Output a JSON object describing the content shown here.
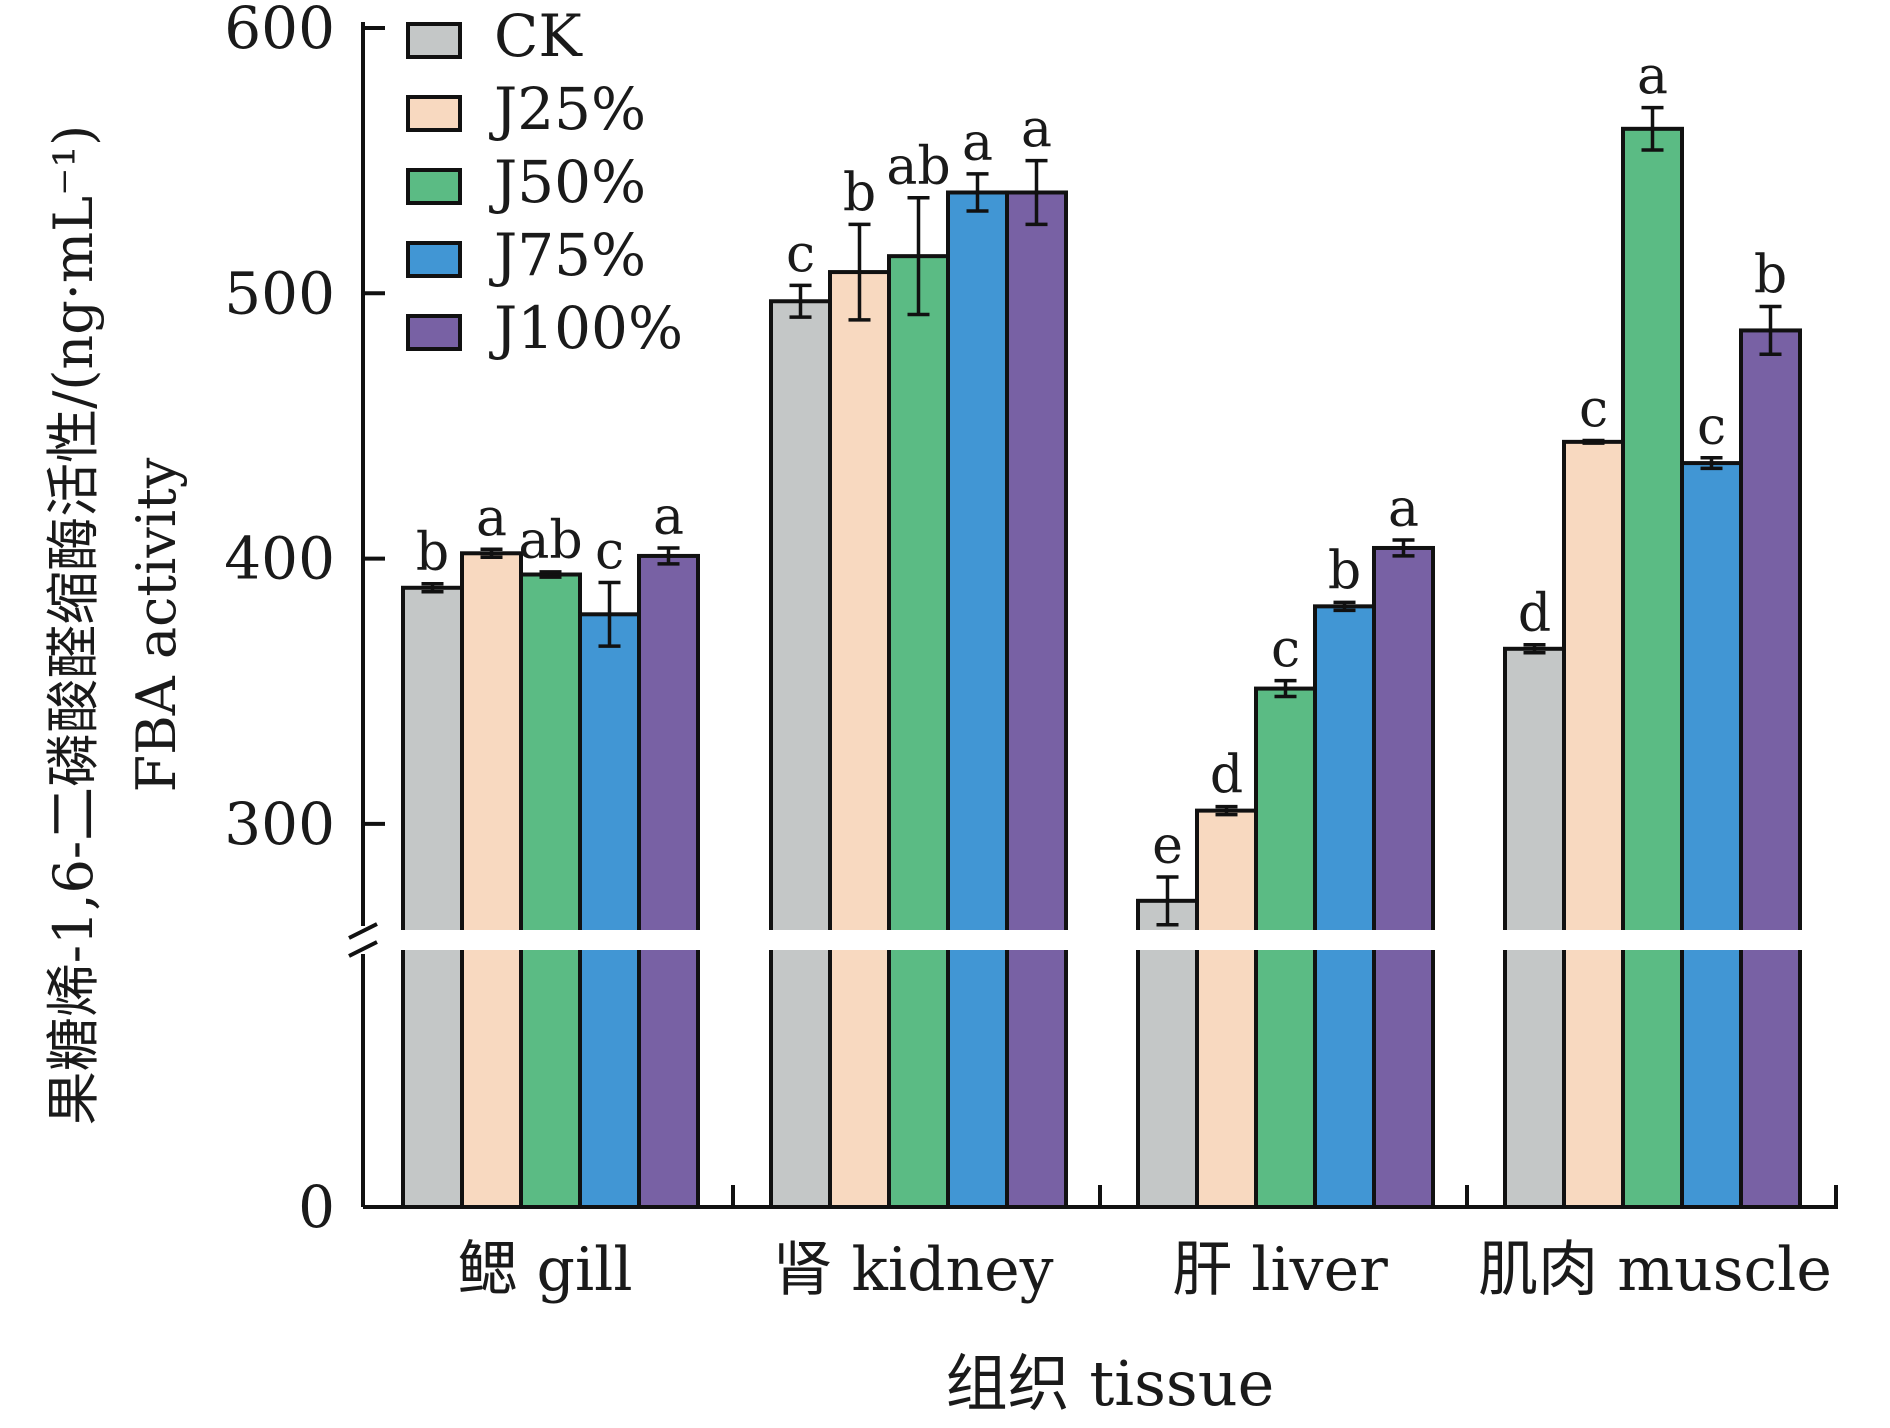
{
  "chart_data": {
    "type": "bar",
    "title": "",
    "xlabel": "组织 tissue",
    "ylabel_line1": "果糖烯-1,6-二磷酸醛缩酶活性/(ng·mL⁻¹)",
    "ylabel_line2": "FBA activity",
    "categories": [
      "鳃 gill",
      "肾 kidney",
      "肝 liver",
      "肌肉 muscle"
    ],
    "yticks": [
      "0",
      "300",
      "400",
      "500",
      "600"
    ],
    "ylim_upper": [
      260,
      600
    ],
    "ylim_lower": [
      0,
      260
    ],
    "axis_break": true,
    "legend_position": "top-left",
    "series": [
      {
        "name": "CK",
        "color": "#c4c7c7",
        "values": [
          389,
          497,
          271,
          366
        ],
        "errors": [
          1.5,
          6,
          9,
          1.5
        ],
        "letters": [
          "b",
          "c",
          "e",
          "d"
        ]
      },
      {
        "name": "J25%",
        "color": "#f8d9c0",
        "values": [
          402,
          508,
          305,
          444
        ],
        "errors": [
          1.5,
          18,
          1.5,
          0.5
        ],
        "letters": [
          "a",
          "b",
          "d",
          "c"
        ]
      },
      {
        "name": "J50%",
        "color": "#5bbb84",
        "values": [
          394,
          514,
          351,
          562
        ],
        "errors": [
          1,
          22,
          3,
          8
        ],
        "letters": [
          "ab",
          "ab",
          "c",
          "a"
        ]
      },
      {
        "name": "J75%",
        "color": "#4196d4",
        "values": [
          379,
          538,
          382,
          436
        ],
        "errors": [
          12,
          7,
          1.5,
          2
        ],
        "letters": [
          "c",
          "a",
          "b",
          "c"
        ]
      },
      {
        "name": "J100%",
        "color": "#7861a4",
        "values": [
          401,
          538,
          404,
          486
        ],
        "errors": [
          3,
          12,
          3,
          9
        ],
        "letters": [
          "a",
          "a",
          "a",
          "b"
        ]
      }
    ]
  }
}
